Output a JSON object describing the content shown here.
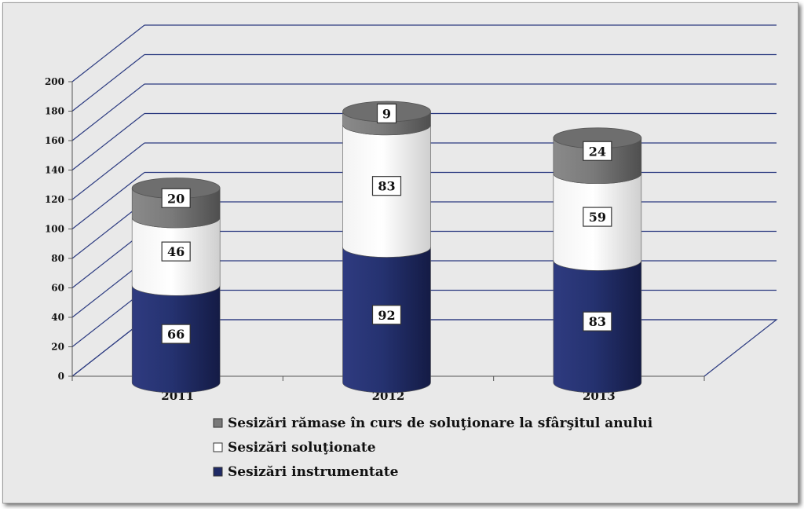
{
  "chart_data": {
    "type": "bar",
    "subtype": "stacked-3d-cylinder",
    "categories": [
      "2011",
      "2012",
      "2013"
    ],
    "series": [
      {
        "name": "Sesizări instrumentate",
        "values": [
          66,
          92,
          83
        ],
        "color": "#1f2a66",
        "label_bg": "#ffffff"
      },
      {
        "name": "Sesizări soluţionate",
        "values": [
          46,
          83,
          59
        ],
        "color": "#fafafa",
        "label_bg": "#ffffff"
      },
      {
        "name": "Sesizări rămase în curs de soluţionare la sfârşitul anului",
        "values": [
          20,
          9,
          24
        ],
        "color": "#7a7a7a",
        "label_bg": "#ffffff"
      }
    ],
    "ylim": [
      0,
      200
    ],
    "yticks": [
      0,
      20,
      40,
      60,
      80,
      100,
      120,
      140,
      160,
      180,
      200
    ],
    "grid": true,
    "legend_position": "bottom",
    "legend_order": [
      2,
      1,
      0
    ],
    "title": "",
    "xlabel": "",
    "ylabel": ""
  },
  "colors": {
    "background": "#e9e9e9",
    "gridline": "#2b3a80",
    "axis": "#555555"
  }
}
